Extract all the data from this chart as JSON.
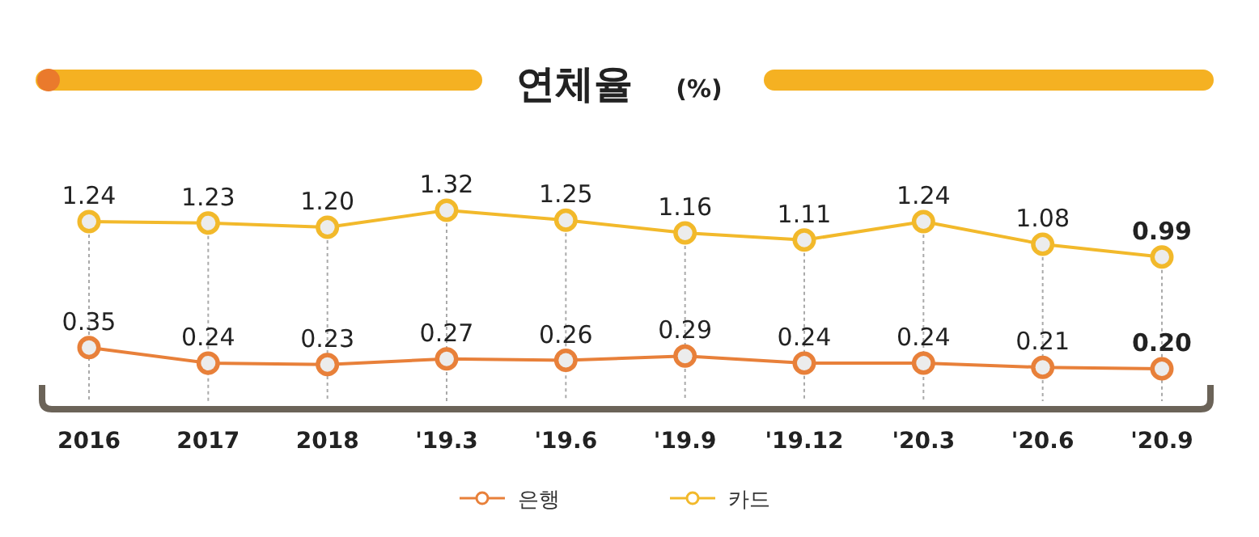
{
  "chart_data": {
    "type": "line",
    "title": "연체율",
    "subtitle": "(%)",
    "categories": [
      "2016",
      "2017",
      "2018",
      "'19.3",
      "'19.6",
      "'19.9",
      "'19.12",
      "'20.3",
      "'20.6",
      "'20.9"
    ],
    "series": [
      {
        "name": "은행",
        "color": "#e8803a",
        "values": [
          0.35,
          0.24,
          0.23,
          0.27,
          0.26,
          0.29,
          0.24,
          0.24,
          0.21,
          0.2
        ],
        "value_labels": [
          "0.35",
          "0.24",
          "0.23",
          "0.27",
          "0.26",
          "0.29",
          "0.24",
          "0.24",
          "0.21",
          "0.20"
        ]
      },
      {
        "name": "카드",
        "color": "#f2b92b",
        "values": [
          1.24,
          1.23,
          1.2,
          1.32,
          1.25,
          1.16,
          1.11,
          1.24,
          1.08,
          0.99
        ],
        "value_labels": [
          "1.24",
          "1.23",
          "1.20",
          "1.32",
          "1.25",
          "1.16",
          "1.11",
          "1.24",
          "1.08",
          "0.99"
        ]
      }
    ],
    "grid": "x",
    "legend": "bottom",
    "marker": "circle",
    "line_style": "solid"
  }
}
